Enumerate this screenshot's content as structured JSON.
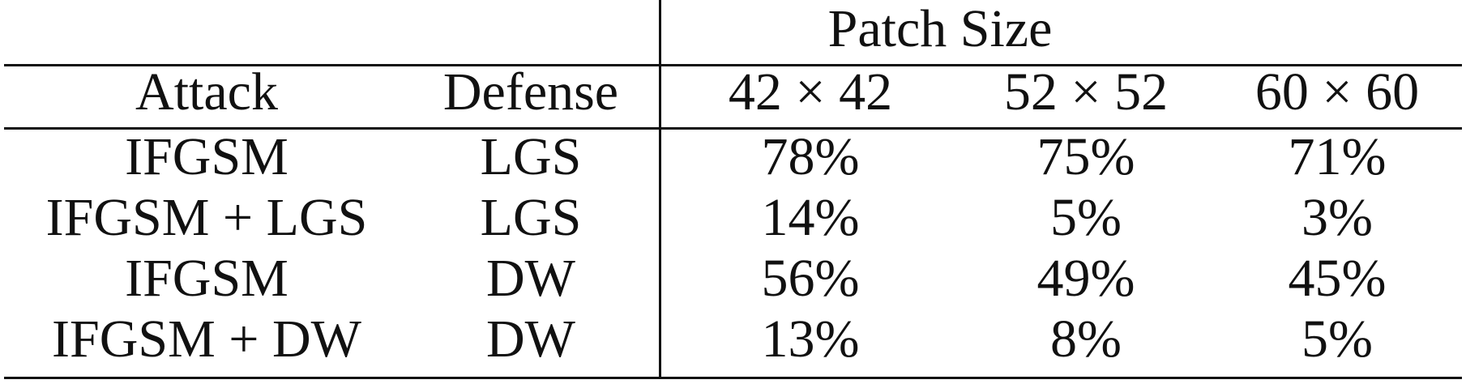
{
  "table": {
    "group_header": "Patch Size",
    "columns": {
      "attack": "Attack",
      "defense": "Defense",
      "size1": "42 × 42",
      "size2": "52 × 52",
      "size3": "60 × 60"
    },
    "rows": [
      {
        "attack": "IFGSM",
        "defense": "LGS",
        "v1": "78%",
        "v2": "75%",
        "v3": "71%"
      },
      {
        "attack": "IFGSM + LGS",
        "defense": "LGS",
        "v1": "14%",
        "v2": "5%",
        "v3": "3%"
      },
      {
        "attack": "IFGSM",
        "defense": "DW",
        "v1": "56%",
        "v2": "49%",
        "v3": "45%"
      },
      {
        "attack": "IFGSM + DW",
        "defense": "DW",
        "v1": "13%",
        "v2": "8%",
        "v3": "5%"
      }
    ]
  }
}
